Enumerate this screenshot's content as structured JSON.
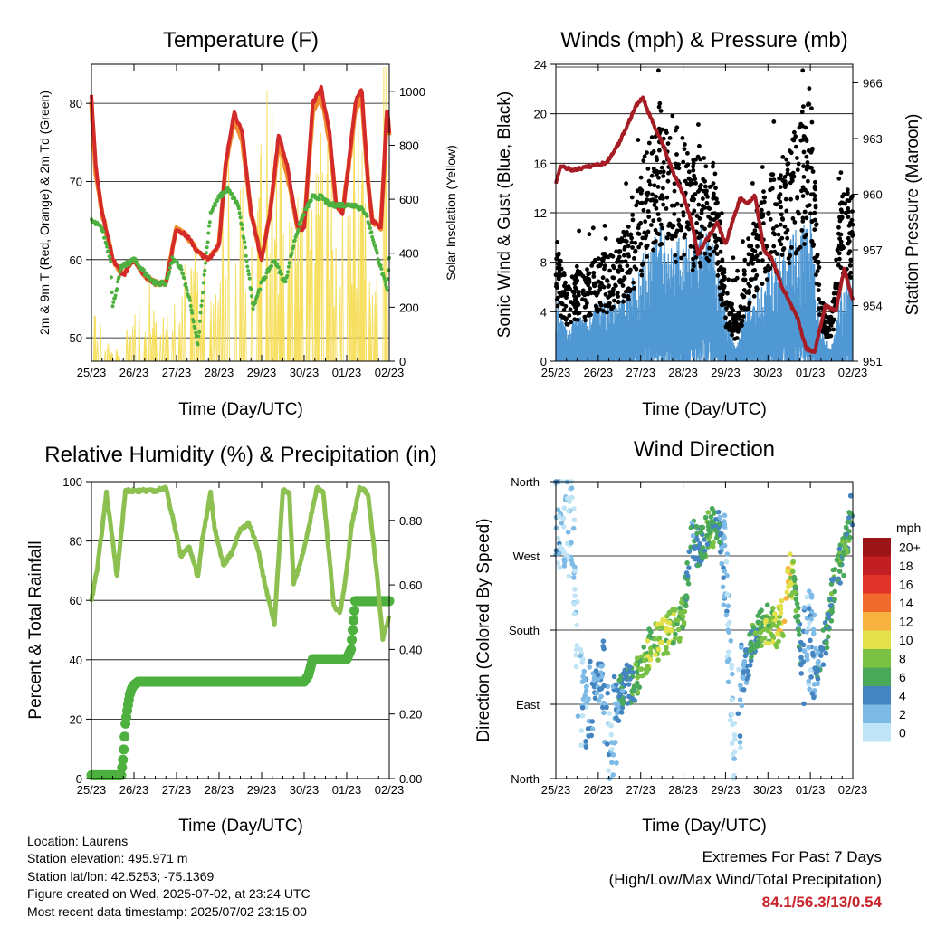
{
  "chart_data": [
    {
      "type": "line",
      "title": "Temperature (F)",
      "xlabel": "Time (Day/UTC)",
      "ylabel": "2m & 9m T (Red, Orange) & 2m Td (Green)",
      "ylabel_right": "Solar Insolation (Yellow)",
      "x_ticks": [
        "25/23",
        "26/23",
        "27/23",
        "28/23",
        "29/23",
        "30/23",
        "01/23",
        "02/23"
      ],
      "y_ticks": [
        50,
        60,
        70,
        80
      ],
      "y_ticks_right": [
        0,
        200,
        400,
        600,
        800,
        1000
      ],
      "ylim": [
        47,
        85
      ],
      "ylim_right": [
        0,
        1100
      ],
      "grid": true,
      "series": [
        {
          "name": "2m T",
          "color": "#d42a2a",
          "x": [
            0,
            0.1,
            0.25,
            0.5,
            0.75,
            1.0,
            1.25,
            1.5,
            1.75,
            2.0,
            2.25,
            2.5,
            2.75,
            3.0,
            3.15,
            3.35,
            3.55,
            3.75,
            4.0,
            4.2,
            4.4,
            4.6,
            4.85,
            5.0,
            5.2,
            5.4,
            5.6,
            5.75,
            5.9,
            6.0,
            6.2,
            6.35,
            6.5,
            6.6,
            6.8,
            6.95,
            7.0
          ],
          "y": [
            81,
            72,
            66,
            60,
            58,
            60,
            58,
            57,
            57,
            64,
            63,
            61,
            60,
            62,
            72,
            79,
            76,
            66,
            60,
            66,
            76,
            72,
            64,
            64,
            80,
            82,
            76,
            67,
            66,
            70,
            80,
            82,
            70,
            65,
            64,
            80,
            76
          ]
        },
        {
          "name": "9m T",
          "color": "#f28a2e",
          "x": [
            0,
            0.1,
            0.25,
            0.5,
            0.75,
            1.0,
            1.25,
            1.5,
            1.75,
            2.0,
            2.25,
            2.5,
            2.75,
            3.0,
            3.15,
            3.35,
            3.55,
            3.75,
            4.0,
            4.2,
            4.4,
            4.6,
            4.85,
            5.0,
            5.2,
            5.4,
            5.6,
            5.75,
            5.9,
            6.0,
            6.2,
            6.35,
            6.5,
            6.6,
            6.8,
            6.95,
            7.0
          ],
          "y": [
            80,
            71,
            66,
            60,
            58,
            60,
            58,
            57,
            57,
            64,
            63,
            61,
            60,
            62,
            72,
            78,
            75,
            66,
            60,
            66,
            75,
            71,
            64,
            64,
            79,
            81,
            75,
            67,
            66,
            70,
            79,
            81,
            70,
            65,
            64,
            79,
            76
          ]
        },
        {
          "name": "2m Td",
          "color": "#4db03f",
          "x": [
            0,
            0.25,
            0.45,
            0.5,
            0.7,
            1.0,
            1.3,
            1.5,
            1.75,
            1.9,
            2.1,
            2.3,
            2.5,
            2.65,
            2.8,
            3.0,
            3.2,
            3.45,
            3.6,
            3.8,
            4.0,
            4.3,
            4.55,
            4.8,
            5.0,
            5.2,
            5.4,
            5.6,
            5.8,
            6.0,
            6.2,
            6.45,
            6.65,
            6.8,
            6.95,
            7.0
          ],
          "y": [
            65,
            64,
            60,
            54,
            59,
            60,
            58,
            57,
            57,
            60,
            59,
            55,
            49,
            58,
            66,
            68,
            69,
            67,
            62,
            54,
            57,
            60,
            57,
            63,
            66,
            68,
            68,
            67,
            67,
            67,
            67,
            66,
            62,
            59,
            56,
            60
          ]
        },
        {
          "name": "Solar Insolation",
          "color": "#f5dc50",
          "axis": "right",
          "x": [
            0.1,
            0.35,
            0.45,
            0.55,
            1.1,
            1.35,
            1.6,
            2.1,
            2.3,
            2.55,
            2.7,
            3.1,
            3.2,
            3.35,
            3.45,
            3.65,
            4.15,
            4.45,
            4.55,
            4.7,
            5.1,
            5.25,
            5.4,
            5.55,
            5.7,
            6.1,
            6.25,
            6.4,
            6.55,
            6.65,
            6.85
          ],
          "y": [
            150,
            80,
            60,
            40,
            180,
            250,
            120,
            300,
            350,
            400,
            250,
            600,
            900,
            750,
            850,
            500,
            1050,
            700,
            400,
            500,
            650,
            900,
            700,
            800,
            350,
            700,
            850,
            600,
            300,
            200,
            950
          ]
        }
      ]
    },
    {
      "type": "scatter",
      "title": "Winds (mph) & Pressure (mb)",
      "xlabel": "Time (Day/UTC)",
      "ylabel": "Sonic Wind & Gust (Blue, Black)",
      "ylabel_right": "Station Pressure (Maroon)",
      "x_ticks": [
        "25/23",
        "26/23",
        "27/23",
        "28/23",
        "29/23",
        "30/23",
        "01/23",
        "02/23"
      ],
      "y_ticks": [
        0,
        4,
        8,
        12,
        16,
        20,
        24
      ],
      "y_ticks_right": [
        951,
        954,
        957,
        960,
        963,
        966
      ],
      "ylim": [
        0,
        24
      ],
      "ylim_right": [
        951,
        967
      ],
      "grid": true,
      "series": [
        {
          "name": "Sonic Wind",
          "color": "#4f98d3",
          "x": [
            0,
            0.25,
            0.5,
            0.75,
            1.0,
            1.25,
            1.5,
            1.75,
            2.0,
            2.25,
            2.5,
            2.75,
            3.0,
            3.25,
            3.5,
            3.75,
            4.0,
            4.25,
            4.5,
            4.75,
            5.0,
            5.25,
            5.5,
            5.75,
            6.0,
            6.25,
            6.5,
            6.75,
            7.0
          ],
          "y": [
            5,
            2,
            3,
            3,
            4,
            4,
            4,
            5,
            7,
            8,
            9,
            8,
            8,
            8,
            9,
            8,
            3,
            1,
            4,
            5,
            6,
            7,
            8,
            9,
            10,
            2,
            1,
            5,
            6
          ]
        },
        {
          "name": "Gust",
          "color": "#000000",
          "x": [
            0,
            0.25,
            0.5,
            0.75,
            1.0,
            1.25,
            1.5,
            1.75,
            2.0,
            2.25,
            2.5,
            2.75,
            3.0,
            3.25,
            3.5,
            3.75,
            4.0,
            4.25,
            4.5,
            4.75,
            5.0,
            5.25,
            5.5,
            5.75,
            6.0,
            6.25,
            6.5,
            6.75,
            7.0
          ],
          "y": [
            8,
            5,
            6,
            6,
            7,
            7,
            8,
            9,
            12,
            16,
            17,
            14,
            15,
            13,
            14,
            13,
            5,
            3,
            7,
            10,
            12,
            13,
            14,
            16,
            18,
            4,
            3,
            12,
            11
          ]
        },
        {
          "name": "Station Pressure",
          "color": "#a51c24",
          "axis": "right",
          "x": [
            0,
            0.1,
            0.4,
            0.8,
            1.2,
            1.5,
            1.7,
            1.9,
            2.05,
            2.2,
            2.5,
            2.8,
            3.0,
            3.2,
            3.35,
            3.6,
            3.8,
            4.0,
            4.2,
            4.35,
            4.5,
            4.7,
            4.9,
            5.1,
            5.3,
            5.5,
            5.7,
            5.9,
            6.1,
            6.35,
            6.6,
            6.8,
            6.95,
            7.0
          ],
          "y": [
            960.5,
            961.5,
            961.3,
            961.5,
            961.7,
            962.8,
            963.8,
            964.8,
            965.2,
            964.3,
            962.8,
            961.0,
            960.0,
            958.5,
            956.8,
            957.7,
            958.5,
            957.3,
            958.8,
            959.8,
            959.5,
            959.9,
            957.0,
            956.5,
            955.2,
            954.2,
            953.3,
            951.7,
            951.5,
            954.0,
            953.7,
            956.0,
            954.7,
            954.3
          ]
        }
      ]
    },
    {
      "type": "line",
      "title": "Relative Humidity (%) & Precipitation (in)",
      "xlabel": "Time (Day/UTC)",
      "ylabel": "Percent & Total Rainfall",
      "x_ticks": [
        "25/23",
        "26/23",
        "27/23",
        "28/23",
        "29/23",
        "30/23",
        "01/23",
        "02/23"
      ],
      "y_ticks": [
        0,
        20,
        40,
        60,
        80,
        100
      ],
      "y_ticks_right": [
        "0.00",
        "0.20",
        "0.40",
        "0.60",
        "0.80"
      ],
      "ylim": [
        0,
        100
      ],
      "ylim_right": [
        0,
        0.92
      ],
      "grid": true,
      "series": [
        {
          "name": "Relative Humidity",
          "color": "#8cc152",
          "x": [
            0,
            0.15,
            0.35,
            0.5,
            0.6,
            0.8,
            1.0,
            1.25,
            1.5,
            1.75,
            2.0,
            2.1,
            2.3,
            2.5,
            2.6,
            2.8,
            2.9,
            3.1,
            3.3,
            3.5,
            3.7,
            3.9,
            4.1,
            4.3,
            4.5,
            4.65,
            4.75,
            4.9,
            5.1,
            5.3,
            5.45,
            5.7,
            5.85,
            6.0,
            6.1,
            6.3,
            6.5,
            6.7,
            6.85,
            7.0
          ],
          "y": [
            60,
            72,
            96,
            80,
            68,
            97,
            97,
            97,
            97,
            98,
            82,
            75,
            78,
            68,
            80,
            96,
            84,
            72,
            76,
            84,
            86,
            78,
            64,
            52,
            97,
            96,
            66,
            72,
            84,
            98,
            96,
            58,
            56,
            70,
            84,
            98,
            96,
            70,
            47,
            55
          ]
        },
        {
          "name": "Total Rainfall",
          "color": "#4db03f",
          "axis": "right",
          "x": [
            0,
            0.15,
            0.3,
            0.5,
            0.7,
            0.75,
            0.8,
            0.85,
            0.9,
            0.95,
            1.0,
            1.1,
            1.3,
            2.0,
            3.0,
            4.0,
            4.5,
            5.0,
            5.1,
            5.2,
            5.5,
            6.0,
            6.1,
            6.2,
            6.5,
            7.0
          ],
          "y": [
            0.01,
            0.01,
            0.01,
            0.01,
            0.01,
            0.07,
            0.17,
            0.22,
            0.26,
            0.28,
            0.29,
            0.3,
            0.3,
            0.3,
            0.3,
            0.3,
            0.3,
            0.3,
            0.32,
            0.37,
            0.37,
            0.37,
            0.4,
            0.55,
            0.55,
            0.55
          ]
        }
      ]
    },
    {
      "type": "scatter",
      "title": "Wind Direction",
      "xlabel": "Time (Day/UTC)",
      "ylabel": "Direction (Colored By Speed)",
      "x_ticks": [
        "25/23",
        "26/23",
        "27/23",
        "28/23",
        "29/23",
        "30/23",
        "01/23",
        "02/23"
      ],
      "y_ticks": [
        "North",
        "East",
        "South",
        "West",
        "North"
      ],
      "ylim": [
        0,
        360
      ],
      "grid": true,
      "colorbar": {
        "title": "mph",
        "labels": [
          "0",
          "2",
          "4",
          "6",
          "8",
          "10",
          "12",
          "14",
          "16",
          "18",
          "20+"
        ],
        "colors": [
          "#bfe4f6",
          "#7dbae6",
          "#4484c0",
          "#4aa85a",
          "#7bc143",
          "#e2e04b",
          "#f8b23f",
          "#f06a2d",
          "#e2332a",
          "#c21f24",
          "#9b1516"
        ]
      },
      "series": [
        {
          "name": "Direction",
          "x": [
            0,
            0.2,
            0.4,
            0.55,
            0.7,
            0.9,
            1.1,
            1.3,
            1.5,
            1.7,
            1.9,
            2.1,
            2.3,
            2.5,
            2.7,
            2.9,
            3.0,
            3.2,
            3.4,
            3.6,
            3.8,
            4.0,
            4.2,
            4.4,
            4.6,
            4.8,
            5.0,
            5.2,
            5.4,
            5.5,
            5.6,
            5.8,
            6.0,
            6.2,
            6.4,
            6.6,
            6.8,
            6.95
          ],
          "y": [
            320,
            310,
            305,
            100,
            90,
            110,
            120,
            40,
            100,
            115,
            120,
            150,
            165,
            170,
            180,
            190,
            200,
            290,
            280,
            300,
            310,
            260,
            20,
            120,
            160,
            180,
            190,
            180,
            200,
            250,
            240,
            140,
            170,
            130,
            180,
            250,
            270,
            320
          ],
          "speed": [
            3,
            2,
            1,
            2,
            3,
            4,
            4,
            2,
            5,
            6,
            7,
            8,
            9,
            10,
            9,
            8,
            8,
            5,
            6,
            7,
            6,
            3,
            1,
            4,
            6,
            8,
            9,
            10,
            11,
            12,
            9,
            4,
            3,
            5,
            6,
            7,
            8,
            6
          ]
        }
      ]
    }
  ],
  "info": {
    "location": "Location: Laurens",
    "elevation": "Station elevation: 495.971 m",
    "latlon": "Station lat/lon: 42.5253; -75.1369",
    "created": "Figure created on Wed, 2025-07-02, at 23:24 UTC",
    "recent": "Most recent data timestamp: 2025/07/02 23:15:00"
  },
  "extremes": {
    "title": "Extremes For Past 7 Days",
    "subtitle": "(High/Low/Max Wind/Total Precipitation)",
    "values": "84.1/56.3/13/0.54"
  }
}
